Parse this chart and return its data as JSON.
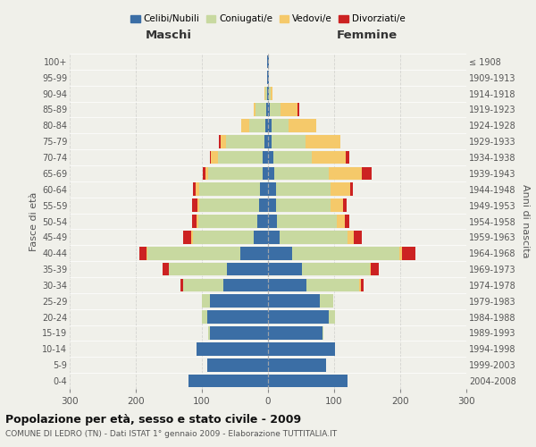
{
  "age_groups": [
    "0-4",
    "5-9",
    "10-14",
    "15-19",
    "20-24",
    "25-29",
    "30-34",
    "35-39",
    "40-44",
    "45-49",
    "50-54",
    "55-59",
    "60-64",
    "65-69",
    "70-74",
    "75-79",
    "80-84",
    "85-89",
    "90-94",
    "95-99",
    "100+"
  ],
  "birth_years": [
    "2004-2008",
    "1999-2003",
    "1994-1998",
    "1989-1993",
    "1984-1988",
    "1979-1983",
    "1974-1978",
    "1969-1973",
    "1964-1968",
    "1959-1963",
    "1954-1958",
    "1949-1953",
    "1944-1948",
    "1939-1943",
    "1934-1938",
    "1929-1933",
    "1924-1928",
    "1919-1923",
    "1914-1918",
    "1909-1913",
    "≤ 1908"
  ],
  "colors": {
    "celibi": "#3b6ea5",
    "coniugati": "#c8d9a0",
    "vedovi": "#f5c96a",
    "divorziati": "#cc2222"
  },
  "male": {
    "celibi": [
      120,
      92,
      108,
      88,
      92,
      88,
      68,
      62,
      42,
      22,
      16,
      14,
      12,
      8,
      8,
      6,
      4,
      3,
      2,
      1,
      1
    ],
    "coniugati": [
      0,
      0,
      0,
      2,
      8,
      12,
      60,
      88,
      140,
      92,
      90,
      90,
      92,
      82,
      68,
      58,
      24,
      16,
      2,
      0,
      0
    ],
    "vedovi": [
      0,
      0,
      0,
      0,
      0,
      0,
      0,
      0,
      2,
      2,
      2,
      3,
      5,
      5,
      10,
      8,
      12,
      3,
      1,
      0,
      0
    ],
    "divorziati": [
      0,
      0,
      0,
      0,
      0,
      0,
      4,
      10,
      10,
      12,
      7,
      8,
      5,
      3,
      2,
      2,
      0,
      0,
      0,
      0,
      0
    ]
  },
  "female": {
    "nubili": [
      120,
      88,
      102,
      82,
      92,
      78,
      58,
      52,
      36,
      18,
      14,
      12,
      12,
      10,
      8,
      5,
      5,
      3,
      1,
      1,
      1
    ],
    "coniugate": [
      0,
      0,
      0,
      2,
      10,
      20,
      80,
      102,
      162,
      102,
      90,
      82,
      82,
      82,
      58,
      52,
      26,
      16,
      3,
      0,
      0
    ],
    "vedove": [
      0,
      0,
      0,
      0,
      0,
      0,
      2,
      2,
      5,
      10,
      12,
      20,
      30,
      50,
      52,
      52,
      42,
      26,
      3,
      1,
      0
    ],
    "divorziate": [
      0,
      0,
      0,
      0,
      0,
      0,
      5,
      12,
      20,
      12,
      7,
      5,
      5,
      15,
      5,
      0,
      0,
      2,
      0,
      0,
      0
    ]
  },
  "xlim": 300,
  "title": "Popolazione per età, sesso e stato civile - 2009",
  "subtitle": "COMUNE DI LEDRO (TN) - Dati ISTAT 1° gennaio 2009 - Elaborazione TUTTITALIA.IT",
  "ylabel_left": "Fasce di età",
  "ylabel_right": "Anni di nascita",
  "xlabel_left": "Maschi",
  "xlabel_right": "Femmine",
  "legend_labels": [
    "Celibi/Nubili",
    "Coniugati/e",
    "Vedovi/e",
    "Divorziati/e"
  ],
  "background_color": "#f0f0ea"
}
